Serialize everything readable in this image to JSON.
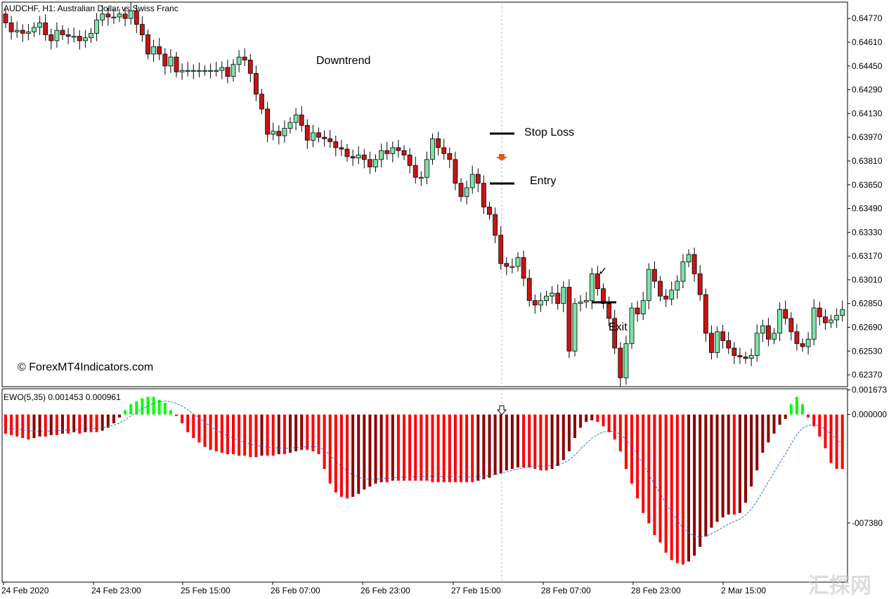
{
  "chart_data": [
    {
      "type": "candlestick",
      "title": "AUDCHF, H1:  Australian Dollar vs Swiss Franc",
      "ylim": [
        0.6229,
        0.6488
      ],
      "y_ticks": [
        "0.64770",
        "0.64610",
        "0.64450",
        "0.64290",
        "0.64130",
        "0.63970",
        "0.63810",
        "0.63650",
        "0.63490",
        "0.63330",
        "0.63170",
        "0.63010",
        "0.62850",
        "0.62690",
        "0.62530",
        "0.62370"
      ],
      "x_labels": [
        "24 Feb 2020",
        "24 Feb 23:00",
        "25 Feb 15:00",
        "26 Feb 07:00",
        "26 Feb 23:00",
        "27 Feb 15:00",
        "28 Feb 07:00",
        "28 Feb 23:00",
        "2 Mar 15:00"
      ],
      "colors": {
        "up": "#7ce3a9",
        "down": "#c91414",
        "wick": "#000000"
      },
      "closes": [
        0.6474,
        0.6468,
        0.6469,
        0.6467,
        0.6468,
        0.6471,
        0.6474,
        0.6466,
        0.6462,
        0.6469,
        0.6466,
        0.6465,
        0.6465,
        0.6462,
        0.6464,
        0.6467,
        0.6476,
        0.648,
        0.6478,
        0.6478,
        0.648,
        0.6477,
        0.6482,
        0.6473,
        0.6466,
        0.6453,
        0.6458,
        0.6453,
        0.6445,
        0.6451,
        0.6441,
        0.6442,
        0.6442,
        0.6442,
        0.6442,
        0.6442,
        0.6442,
        0.6442,
        0.6444,
        0.6438,
        0.6446,
        0.6451,
        0.6449,
        0.644,
        0.6426,
        0.6416,
        0.6399,
        0.6401,
        0.6398,
        0.6403,
        0.6407,
        0.6412,
        0.6405,
        0.6395,
        0.64,
        0.6397,
        0.6396,
        0.6394,
        0.639,
        0.6389,
        0.6384,
        0.6383,
        0.6385,
        0.6382,
        0.6377,
        0.6382,
        0.6388,
        0.6386,
        0.639,
        0.6388,
        0.6385,
        0.6378,
        0.637,
        0.637,
        0.6382,
        0.6396,
        0.639,
        0.6386,
        0.6382,
        0.6366,
        0.6357,
        0.6363,
        0.6372,
        0.6366,
        0.635,
        0.6345,
        0.6331,
        0.6312,
        0.631,
        0.631,
        0.6316,
        0.6302,
        0.6287,
        0.6284,
        0.6287,
        0.629,
        0.6292,
        0.6285,
        0.6296,
        0.6253,
        0.6285,
        0.6286,
        0.6287,
        0.6305,
        0.6295,
        0.6285,
        0.6275,
        0.6255,
        0.6235,
        0.6258,
        0.6282,
        0.6278,
        0.6287,
        0.6308,
        0.63,
        0.629,
        0.6288,
        0.6294,
        0.63,
        0.6313,
        0.6318,
        0.6305,
        0.6291,
        0.6265,
        0.6252,
        0.6266,
        0.626,
        0.6255,
        0.625,
        0.6249,
        0.6248,
        0.625,
        0.6265,
        0.627,
        0.6261,
        0.6265,
        0.6281,
        0.6275,
        0.6266,
        0.6258,
        0.6256,
        0.6261,
        0.6282,
        0.6276,
        0.6272,
        0.6274,
        0.6277,
        0.6281,
        0.6286
      ]
    },
    {
      "type": "bar",
      "title": "EWO(5,35) 0.001453 0.000961",
      "ylim": [
        -0.0114,
        0.00175
      ],
      "y_ticks": [
        "0.001673",
        "0.000000",
        "-007380"
      ],
      "legend": "none",
      "colors": {
        "positive": "#00ff00",
        "negative_falling": "#ff0000",
        "negative_rising": "#8b0000",
        "signal_line": "#1e78d2"
      },
      "values": [
        -0.0013,
        -0.0014,
        -0.0015,
        -0.0016,
        -0.0017,
        -0.0016,
        -0.0015,
        -0.0015,
        -0.0014,
        -0.0014,
        -0.0013,
        -0.0013,
        -0.0012,
        -0.0013,
        -0.0012,
        -0.0012,
        -0.0012,
        -0.0011,
        -0.0009,
        -0.0006,
        -0.0002,
        0.0003,
        0.0007,
        0.0009,
        0.0011,
        0.0012,
        0.0012,
        0.001,
        0.0008,
        0.0003,
        -0.0001,
        -0.0006,
        -0.0012,
        -0.0016,
        -0.0019,
        -0.0022,
        -0.0024,
        -0.0025,
        -0.0026,
        -0.0027,
        -0.0027,
        -0.0028,
        -0.0028,
        -0.0029,
        -0.0029,
        -0.0028,
        -0.0028,
        -0.0028,
        -0.0027,
        -0.0027,
        -0.0026,
        -0.0025,
        -0.0024,
        -0.0024,
        -0.0025,
        -0.0027,
        -0.0037,
        -0.0047,
        -0.0053,
        -0.0056,
        -0.0057,
        -0.0056,
        -0.0054,
        -0.0051,
        -0.0049,
        -0.0047,
        -0.0046,
        -0.0046,
        -0.0045,
        -0.0045,
        -0.0045,
        -0.0045,
        -0.0045,
        -0.0045,
        -0.0045,
        -0.0046,
        -0.0046,
        -0.0046,
        -0.0046,
        -0.0046,
        -0.0046,
        -0.0046,
        -0.0046,
        -0.0045,
        -0.0044,
        -0.0043,
        -0.0041,
        -0.004,
        -0.0038,
        -0.0037,
        -0.0036,
        -0.0036,
        -0.0036,
        -0.0037,
        -0.0038,
        -0.0038,
        -0.0037,
        -0.0035,
        -0.0031,
        -0.0025,
        -0.0016,
        -0.0009,
        -0.0005,
        -0.0004,
        -0.0005,
        -0.0008,
        -0.0012,
        -0.0017,
        -0.0025,
        -0.0037,
        -0.0047,
        -0.0057,
        -0.0067,
        -0.0074,
        -0.0082,
        -0.0087,
        -0.0094,
        -0.0099,
        -0.0101,
        -0.0102,
        -0.01,
        -0.0096,
        -0.009,
        -0.0083,
        -0.0077,
        -0.0073,
        -0.007,
        -0.0068,
        -0.0068,
        -0.0067,
        -0.006,
        -0.0049,
        -0.0038,
        -0.0026,
        -0.0019,
        -0.0013,
        -0.0007,
        -0.0003,
        0.0007,
        0.0012,
        0.0007,
        -0.0002,
        -0.0008,
        -0.0015,
        -0.0023,
        -0.0033,
        -0.0037,
        -0.0037,
        -0.0038,
        -0.0038,
        -0.0037,
        -0.0037,
        -0.0036,
        -0.0034,
        -0.0031,
        -0.0028,
        -0.0025,
        -0.002,
        -0.0012,
        -0.0004,
        0.0006,
        0.0003,
        0.0007,
        0.0011,
        0.0013
      ]
    }
  ],
  "header": {
    "main_title": "AUDCHF, H1:  Australian Dollar vs Swiss Franc",
    "sub_title": "EWO(5,35) 0.001453 0.000961"
  },
  "annotations": {
    "downtrend": "Downtrend",
    "stop_loss": "Stop Loss",
    "entry": "Entry",
    "exit": "Exit",
    "check": "✓",
    "copyright": "© ForexMT4Indicators.com"
  },
  "watermark": "汇探网"
}
